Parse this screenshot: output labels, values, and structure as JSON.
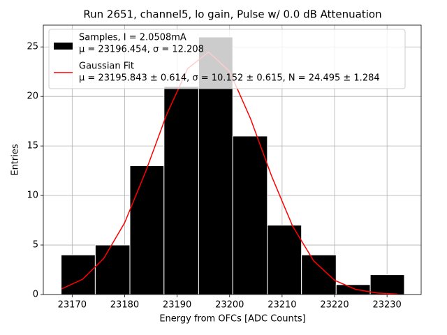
{
  "chart_data": {
    "type": "histogram",
    "title": "Run 2651, channel5, lo gain, Pulse w/ 0.0 dB Attenuation",
    "x_label": "Energy from OFCs [ADC Counts]",
    "y_label": "Entries",
    "xlim": [
      23164.5,
      23236.5
    ],
    "ylim": [
      0,
      27.2
    ],
    "xticks": [
      23170,
      23180,
      23190,
      23200,
      23210,
      23220,
      23230
    ],
    "yticks": [
      0,
      5,
      10,
      15,
      20,
      25
    ],
    "grid": true,
    "legend": "upper left",
    "histogram": {
      "name": "Samples, I = 2.0508mA",
      "stats": "μ = 23196.454, σ = 12.208",
      "color": "#000000",
      "bins": [
        23167.9,
        23174.4,
        23181.0,
        23187.5,
        23194.1,
        23200.6,
        23207.2,
        23213.7,
        23220.3,
        23226.8,
        23233.3
      ],
      "counts": [
        4,
        5,
        13,
        21,
        26,
        16,
        7,
        4,
        1,
        2
      ]
    },
    "fit": {
      "name": "Gaussian Fit",
      "stats": "μ = 23195.843 ± 0.614, σ = 10.152 ± 0.615, N = 24.495 ± 1.284",
      "color": "#ff0000",
      "x": [
        23168,
        23172,
        23176,
        23180,
        23184,
        23188,
        23192,
        23196,
        23200,
        23204,
        23208,
        23212,
        23216,
        23220,
        23224,
        23228,
        23232
      ],
      "values": [
        0.57,
        1.55,
        3.63,
        7.25,
        12.4,
        18.17,
        22.8,
        24.49,
        22.53,
        17.74,
        11.96,
        6.91,
        3.41,
        1.44,
        0.52,
        0.16,
        0.04
      ]
    }
  }
}
